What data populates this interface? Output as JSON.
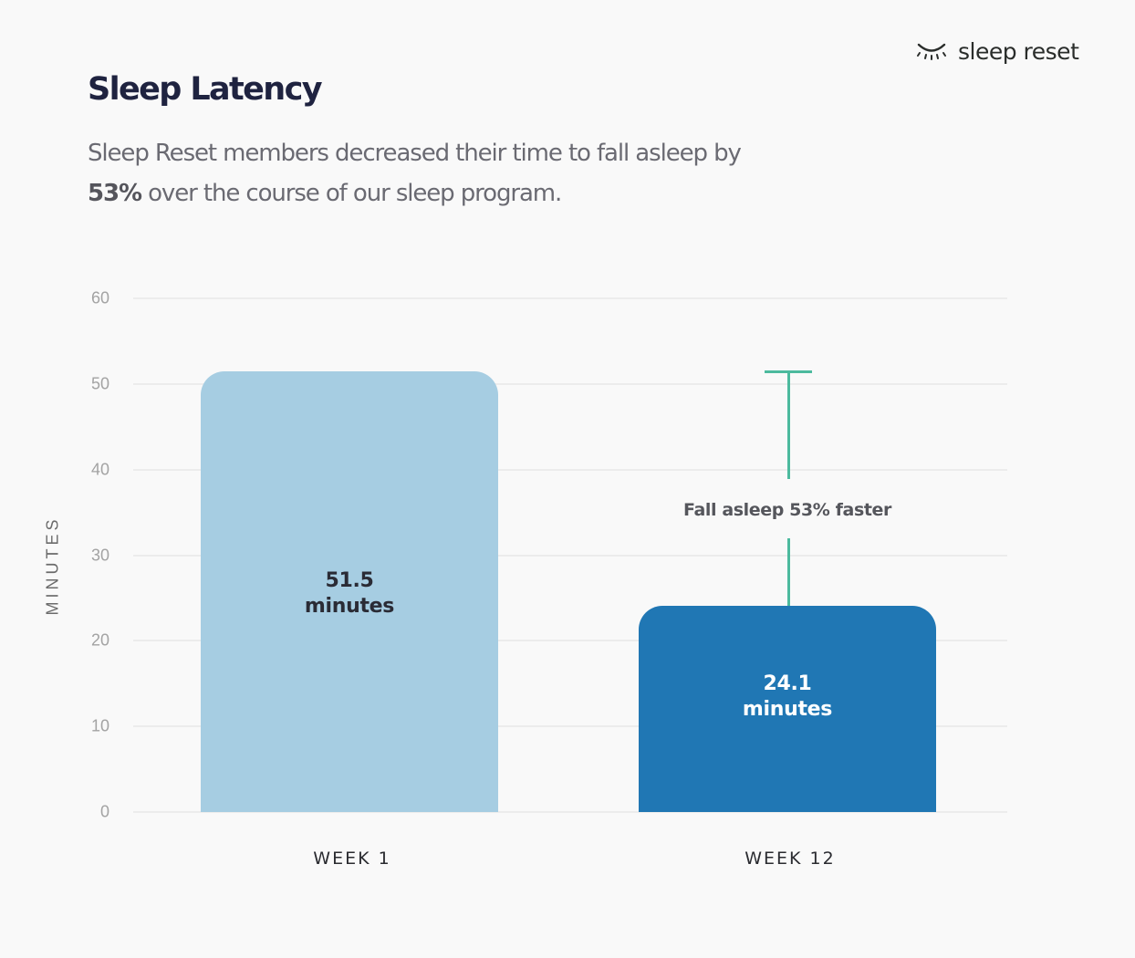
{
  "brand": {
    "logo_icon": "closed-eye-icon",
    "name": "sleep reset"
  },
  "header": {
    "title": "Sleep Latency",
    "subtitle_line1": "Sleep Reset members decreased their time to fall asleep by",
    "subtitle_bold": "53%",
    "subtitle_line2": " over the course of our sleep program."
  },
  "colors": {
    "background": "#f9f9f9",
    "week1_bar": "#a6cde2",
    "week12_bar": "#2077b4",
    "annotation": "#4cba9e",
    "title": "#1f2340"
  },
  "chart_data": {
    "type": "bar",
    "title": "Sleep Latency",
    "subtitle": "Sleep Reset members decreased their time to fall asleep by 53% over the course of our sleep program.",
    "categories": [
      "WEEK 1",
      "WEEK 12"
    ],
    "values": [
      51.5,
      24.1
    ],
    "value_labels": [
      {
        "value": "51.5",
        "unit": "minutes"
      },
      {
        "value": "24.1",
        "unit": "minutes"
      }
    ],
    "xlabel": "",
    "ylabel": "MINUTES",
    "ylim": [
      0,
      60
    ],
    "yticks": [
      0,
      10,
      20,
      30,
      40,
      50,
      60
    ],
    "grid": true,
    "legend": null,
    "annotations": [
      {
        "text": "Fall asleep 53% faster",
        "from": 24.1,
        "to": 51.5,
        "x": "WEEK 12"
      }
    ]
  }
}
